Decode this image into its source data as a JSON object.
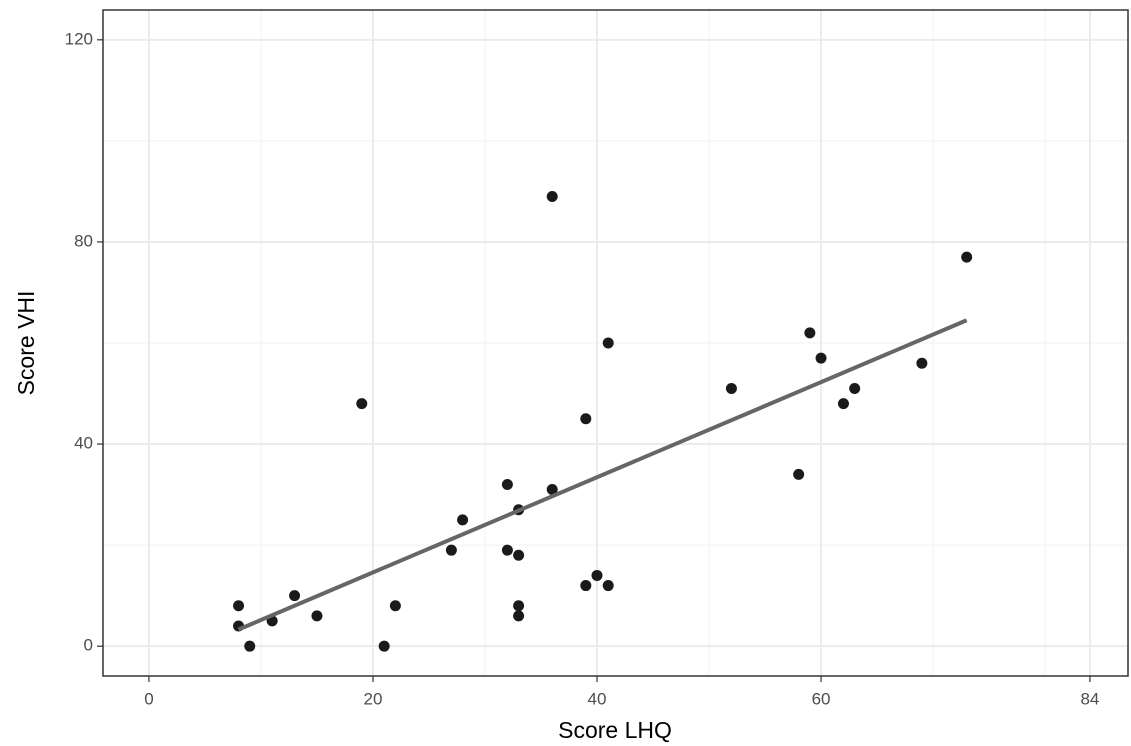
{
  "chart_data": {
    "type": "scatter",
    "xlabel": "Score LHQ",
    "ylabel": "Score VHI",
    "x": [
      8,
      8,
      9,
      11,
      13,
      15,
      19,
      21,
      22,
      27,
      28,
      32,
      32,
      33,
      33,
      33,
      33,
      36,
      36,
      39,
      39,
      40,
      41,
      41,
      52,
      58,
      59,
      60,
      62,
      63,
      69,
      73
    ],
    "y": [
      8,
      4,
      0,
      5,
      10,
      6,
      48,
      0,
      8,
      19,
      25,
      32,
      19,
      27,
      18,
      8,
      6,
      89,
      31,
      45,
      12,
      14,
      60,
      12,
      51,
      34,
      62,
      57,
      48,
      51,
      56,
      77
    ],
    "color": "#1a1a1a",
    "trend": {
      "x": [
        8,
        73
      ],
      "y": [
        3.3,
        64.5
      ],
      "color": "#666666"
    },
    "xlim": [
      -4.1,
      87.4
    ],
    "ylim": [
      -5.9,
      125.9
    ],
    "xticks": [
      0,
      20,
      40,
      60,
      84
    ],
    "yticks": [
      0,
      40,
      80,
      120
    ],
    "x_minor_grid": [
      10,
      30,
      50,
      70,
      80
    ],
    "y_minor_grid": [
      20,
      60,
      100
    ],
    "grid": true
  }
}
